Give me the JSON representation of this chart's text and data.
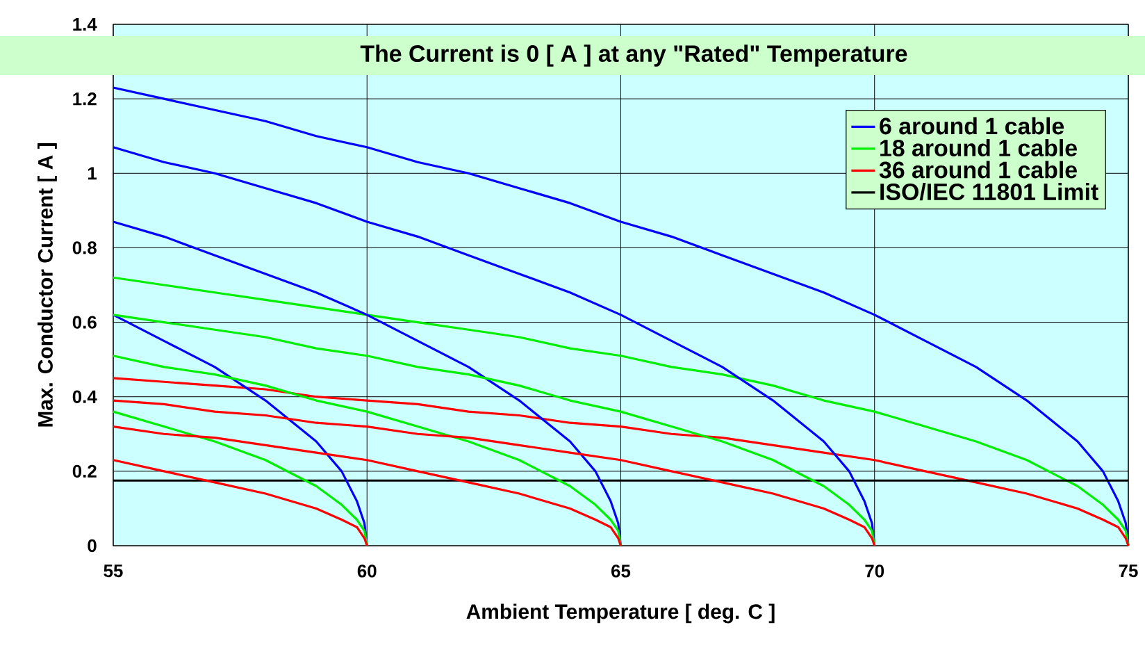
{
  "chart_data": {
    "type": "line",
    "xlabel": "Ambient Temperature [ deg. C ]",
    "ylabel": "Max. Conductor Current [ A ]",
    "annotations": [
      "The Current is 0 [ A ] at any \"Rated\" Temperature"
    ],
    "xlim": [
      55,
      75
    ],
    "xticks": [
      55,
      60,
      65,
      70,
      75
    ],
    "ylim": [
      0,
      1.4
    ],
    "yticks": [
      0,
      0.2,
      0.4,
      0.6,
      0.8,
      1,
      1.2,
      1.4
    ],
    "grid": true,
    "legend": "top right",
    "marker": "none",
    "line_style": "solid",
    "series": [
      {
        "name": "6 around 1 cable",
        "color": "#0000ff",
        "x": [
          55,
          56,
          57,
          58,
          59,
          60,
          61,
          62,
          63,
          64,
          65,
          66,
          67,
          68,
          69,
          70,
          71,
          72,
          73,
          74,
          74.5,
          74.8,
          74.95,
          75
        ],
        "values": [
          1.23,
          1.2,
          1.17,
          1.14,
          1.1,
          1.07,
          1.03,
          1.0,
          0.96,
          0.92,
          0.87,
          0.83,
          0.78,
          0.73,
          0.68,
          0.62,
          0.55,
          0.48,
          0.39,
          0.28,
          0.2,
          0.12,
          0.06,
          0
        ]
      },
      {
        "name": "18 around 1 cable",
        "color": "#00ee00",
        "x": [
          55,
          56,
          57,
          58,
          59,
          60,
          61,
          62,
          63,
          64,
          65,
          66,
          67,
          68,
          69,
          70,
          71,
          72,
          73,
          74,
          74.5,
          74.8,
          74.95,
          75
        ],
        "values": [
          0.72,
          0.7,
          0.68,
          0.66,
          0.64,
          0.62,
          0.6,
          0.58,
          0.56,
          0.53,
          0.51,
          0.48,
          0.46,
          0.43,
          0.39,
          0.36,
          0.32,
          0.28,
          0.23,
          0.16,
          0.11,
          0.07,
          0.04,
          0
        ]
      },
      {
        "name": "36 around 1 cable",
        "color": "#ff0000",
        "x": [
          55,
          56,
          57,
          58,
          59,
          60,
          61,
          62,
          63,
          64,
          65,
          66,
          67,
          68,
          69,
          70,
          71,
          72,
          73,
          74,
          74.5,
          74.8,
          74.95,
          75
        ],
        "values": [
          0.45,
          0.44,
          0.43,
          0.42,
          0.4,
          0.39,
          0.38,
          0.36,
          0.35,
          0.33,
          0.32,
          0.3,
          0.29,
          0.27,
          0.25,
          0.23,
          0.2,
          0.17,
          0.14,
          0.1,
          0.07,
          0.05,
          0.02,
          0
        ]
      },
      {
        "name": "ISO/IEC 11801 Limit",
        "color": "#000000",
        "x": [
          55,
          75
        ],
        "values": [
          0.175,
          0.175
        ]
      },
      {
        "color": "#0000ff",
        "x": [
          55,
          56,
          57,
          58,
          59,
          60,
          61,
          62,
          63,
          64,
          65,
          66,
          67,
          68,
          69,
          69.5,
          69.8,
          69.95,
          70
        ],
        "values": [
          1.07,
          1.03,
          1.0,
          0.96,
          0.92,
          0.87,
          0.83,
          0.78,
          0.73,
          0.68,
          0.62,
          0.55,
          0.48,
          0.39,
          0.28,
          0.2,
          0.12,
          0.06,
          0
        ]
      },
      {
        "color": "#0000ff",
        "x": [
          55,
          56,
          57,
          58,
          59,
          60,
          61,
          62,
          63,
          64,
          64.5,
          64.8,
          64.95,
          65
        ],
        "values": [
          0.87,
          0.83,
          0.78,
          0.73,
          0.68,
          0.62,
          0.55,
          0.48,
          0.39,
          0.28,
          0.2,
          0.12,
          0.06,
          0
        ]
      },
      {
        "color": "#0000ff",
        "x": [
          55,
          56,
          57,
          58,
          59,
          59.5,
          59.8,
          59.95,
          60
        ],
        "values": [
          0.62,
          0.55,
          0.48,
          0.39,
          0.28,
          0.2,
          0.12,
          0.06,
          0
        ]
      },
      {
        "color": "#00ee00",
        "x": [
          55,
          56,
          57,
          58,
          59,
          60,
          61,
          62,
          63,
          64,
          65,
          66,
          67,
          68,
          69,
          69.5,
          69.8,
          69.95,
          70
        ],
        "values": [
          0.62,
          0.6,
          0.58,
          0.56,
          0.53,
          0.51,
          0.48,
          0.46,
          0.43,
          0.39,
          0.36,
          0.32,
          0.28,
          0.23,
          0.16,
          0.11,
          0.07,
          0.04,
          0
        ]
      },
      {
        "color": "#00ee00",
        "x": [
          55,
          56,
          57,
          58,
          59,
          60,
          61,
          62,
          63,
          64,
          64.5,
          64.8,
          64.95,
          65
        ],
        "values": [
          0.51,
          0.48,
          0.46,
          0.43,
          0.39,
          0.36,
          0.32,
          0.28,
          0.23,
          0.16,
          0.11,
          0.07,
          0.04,
          0
        ]
      },
      {
        "color": "#00ee00",
        "x": [
          55,
          56,
          57,
          58,
          59,
          59.5,
          59.8,
          59.95,
          60
        ],
        "values": [
          0.36,
          0.32,
          0.28,
          0.23,
          0.16,
          0.11,
          0.07,
          0.04,
          0
        ]
      },
      {
        "color": "#ff0000",
        "x": [
          55,
          56,
          57,
          58,
          59,
          60,
          61,
          62,
          63,
          64,
          65,
          66,
          67,
          68,
          69,
          69.5,
          69.8,
          69.95,
          70
        ],
        "values": [
          0.39,
          0.38,
          0.36,
          0.35,
          0.33,
          0.32,
          0.3,
          0.29,
          0.27,
          0.25,
          0.23,
          0.2,
          0.17,
          0.14,
          0.1,
          0.07,
          0.05,
          0.02,
          0
        ]
      },
      {
        "color": "#ff0000",
        "x": [
          55,
          56,
          57,
          58,
          59,
          60,
          61,
          62,
          63,
          64,
          64.5,
          64.8,
          64.95,
          65
        ],
        "values": [
          0.32,
          0.3,
          0.29,
          0.27,
          0.25,
          0.23,
          0.2,
          0.17,
          0.14,
          0.1,
          0.07,
          0.05,
          0.02,
          0
        ]
      },
      {
        "color": "#ff0000",
        "x": [
          55,
          56,
          57,
          58,
          59,
          59.5,
          59.8,
          59.95,
          60
        ],
        "values": [
          0.23,
          0.2,
          0.17,
          0.14,
          0.1,
          0.07,
          0.05,
          0.02,
          0
        ]
      }
    ]
  }
}
